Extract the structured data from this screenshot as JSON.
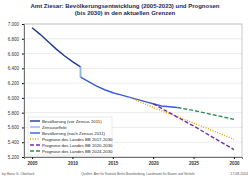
{
  "chart_data": {
    "type": "line",
    "title": [
      "Amt Ziesar: Bevölkerungsentwicklung (2005-2023) und Prognosen",
      "(bis 2030) in den aktuellen Grenzen"
    ],
    "xlim": [
      2004,
      2031
    ],
    "xticks": [
      2005,
      2010,
      2015,
      2020,
      2025,
      2030
    ],
    "ylim": [
      5200,
      7000
    ],
    "yticks": [
      {
        "value": 5200,
        "label": "5.200"
      },
      {
        "value": 5400,
        "label": "5.400"
      },
      {
        "value": 5600,
        "label": "5.600"
      },
      {
        "value": 5800,
        "label": "5.800"
      },
      {
        "value": 6000,
        "label": "6.000"
      },
      {
        "value": 6200,
        "label": "6.200"
      },
      {
        "value": 6400,
        "label": "6.400"
      },
      {
        "value": 6600,
        "label": "6.600"
      },
      {
        "value": 6800,
        "label": "6.800"
      },
      {
        "value": 7000,
        "label": "7.000"
      }
    ],
    "grid": true,
    "legend": "lower left",
    "series": [
      {
        "name": "Bevölkerung (vor Zensus 2011)",
        "color": "#1f3a93",
        "line_style": "solid",
        "x": [
          2005,
          2006,
          2007,
          2008,
          2009,
          2010,
          2011
        ],
        "values": [
          6950,
          6860,
          6760,
          6660,
          6570,
          6490,
          6420
        ]
      },
      {
        "name": "Zensuseffekt",
        "color": "#8fb8e8",
        "line_style": "solid",
        "x": [
          2011,
          2011
        ],
        "values": [
          6420,
          6280
        ]
      },
      {
        "name": "Bevölkerung (nach Zensus 2011)",
        "color": "#3b5bdb",
        "line_style": "solid",
        "x": [
          2011,
          2012,
          2013,
          2014,
          2015,
          2016,
          2017,
          2018,
          2019,
          2020,
          2021,
          2022,
          2023
        ],
        "values": [
          6280,
          6220,
          6160,
          6110,
          6070,
          6040,
          6010,
          5980,
          5950,
          5920,
          5890,
          5880,
          5870
        ]
      },
      {
        "name": "Prognose des Landes BB 2017-2030",
        "color": "#e6a100",
        "line_style": "dotted",
        "x": [
          2017,
          2020,
          2025,
          2030
        ],
        "values": [
          6010,
          5870,
          5660,
          5440
        ]
      },
      {
        "name": "Prognose des Landes BB 2020-2030",
        "color": "#7030a0",
        "line_style": "dashed",
        "x": [
          2020,
          2025,
          2030
        ],
        "values": [
          5920,
          5620,
          5300
        ]
      },
      {
        "name": "Prognose des Landes BB 2024-2030",
        "color": "#2e8b57",
        "line_style": "dashed",
        "x": [
          2023,
          2025,
          2030
        ],
        "values": [
          5870,
          5830,
          5710
        ]
      }
    ],
    "author": "by Hans G. Oberlack",
    "source": "Quellen: Amt für Statistik Berlin-Brandenburg, Landesamt für Bauen und Verkehr",
    "date": "17.08.2024"
  }
}
